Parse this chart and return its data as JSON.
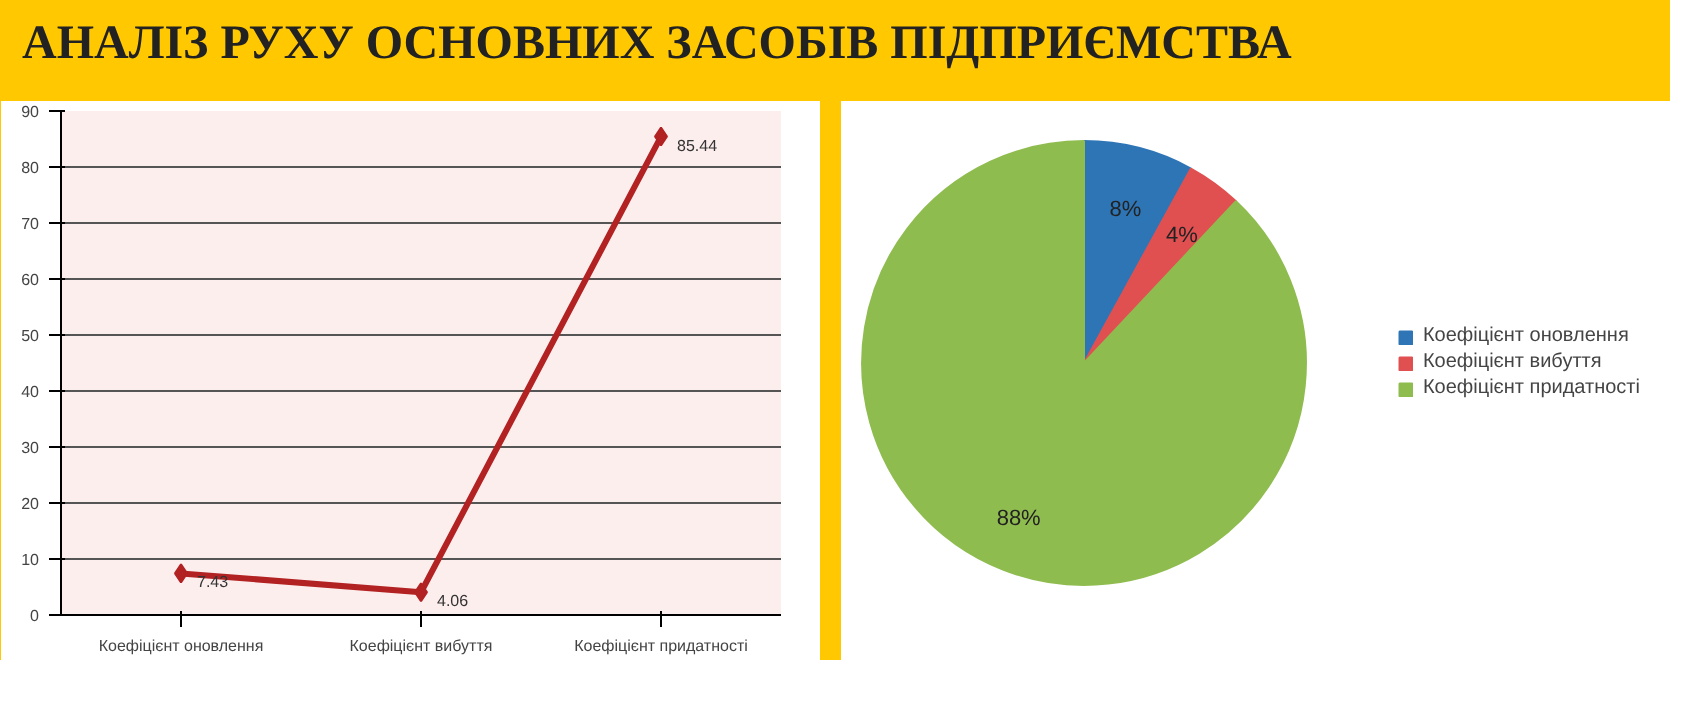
{
  "chart_data": [
    {
      "type": "line",
      "title": "АНАЛІЗ РУХУ ОСНОВНИХ ЗАСОБІВ  ПІДПРИЄМСТВА",
      "categories": [
        "Коефіцієнт оновлення",
        "Коефіцієнт вибуття",
        "Коефіцієнт придатності"
      ],
      "series": [
        {
          "color": "#b22222",
          "values": [
            7.43,
            4.06,
            85.44
          ]
        }
      ],
      "ylim": [
        0,
        90
      ],
      "yticks": [
        0,
        10,
        20,
        30,
        40,
        50,
        60,
        70,
        80,
        90
      ],
      "grid": "y",
      "marker": "diamond",
      "data_labels": true,
      "legend": false
    },
    {
      "type": "pie",
      "categories": [
        "Коефіцієнт оновлення",
        "Коефіцієнт вибуття",
        "Коефіцієнт придатності"
      ],
      "values": [
        8,
        4,
        88
      ],
      "colors": [
        "#2e75b6",
        "#e05050",
        "#8fbc4f"
      ],
      "value_labels": [
        "8%",
        "4%",
        "88%"
      ],
      "legend": "right"
    }
  ]
}
